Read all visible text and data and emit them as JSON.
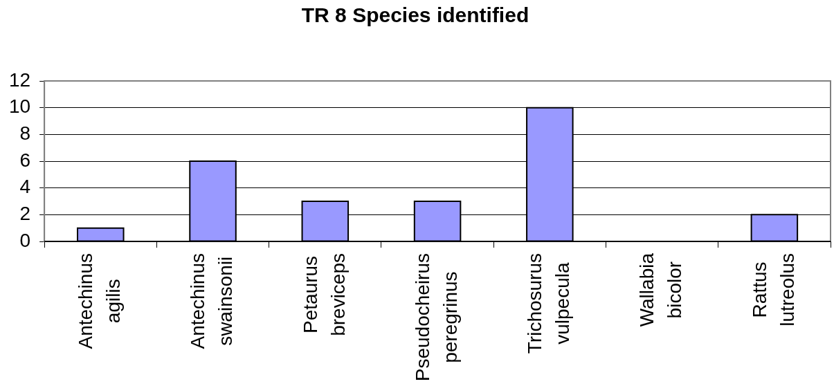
{
  "chart_data": {
    "type": "bar",
    "title": "TR 8 Species identified",
    "categories": [
      "Antechinus agilis",
      "Antechinus swainsonii",
      "Petaurus breviceps",
      "Pseudocheirus peregrinus",
      "Trichosurus vulpecula",
      "Wallabia bicolor",
      "Rattus lutreolus"
    ],
    "values": [
      1,
      6,
      3,
      3,
      10,
      0,
      2
    ],
    "color": "#9999ff",
    "ylim": [
      0,
      12
    ],
    "yticks": [
      0,
      2,
      4,
      6,
      8,
      10,
      12
    ],
    "grid": "y"
  }
}
